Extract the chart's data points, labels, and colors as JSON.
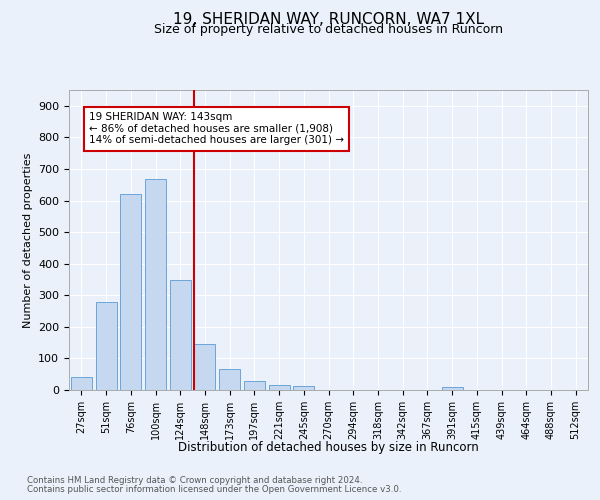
{
  "title": "19, SHERIDAN WAY, RUNCORN, WA7 1XL",
  "subtitle": "Size of property relative to detached houses in Runcorn",
  "xlabel": "Distribution of detached houses by size in Runcorn",
  "ylabel": "Number of detached properties",
  "footer_line1": "Contains HM Land Registry data © Crown copyright and database right 2024.",
  "footer_line2": "Contains public sector information licensed under the Open Government Licence v3.0.",
  "bar_labels": [
    "27sqm",
    "51sqm",
    "76sqm",
    "100sqm",
    "124sqm",
    "148sqm",
    "173sqm",
    "197sqm",
    "221sqm",
    "245sqm",
    "270sqm",
    "294sqm",
    "318sqm",
    "342sqm",
    "367sqm",
    "391sqm",
    "415sqm",
    "439sqm",
    "464sqm",
    "488sqm",
    "512sqm"
  ],
  "bar_values": [
    42,
    278,
    621,
    668,
    349,
    145,
    65,
    28,
    17,
    12,
    0,
    0,
    0,
    0,
    0,
    9,
    0,
    0,
    0,
    0,
    0
  ],
  "bar_color": "#c5d8f0",
  "bar_edge_color": "#5b9bd5",
  "vline_color": "#cc0000",
  "annotation_text": "19 SHERIDAN WAY: 143sqm\n← 86% of detached houses are smaller (1,908)\n14% of semi-detached houses are larger (301) →",
  "annotation_box_color": "#ffffff",
  "annotation_box_edge": "#cc0000",
  "ylim": [
    0,
    950
  ],
  "yticks": [
    0,
    100,
    200,
    300,
    400,
    500,
    600,
    700,
    800,
    900
  ],
  "bg_color": "#eaf1fb",
  "plot_bg_color": "#eaf1fb",
  "title_fontsize": 11,
  "subtitle_fontsize": 9,
  "grid_color": "#ffffff",
  "tick_label_fontsize": 7,
  "ylabel_fontsize": 8
}
